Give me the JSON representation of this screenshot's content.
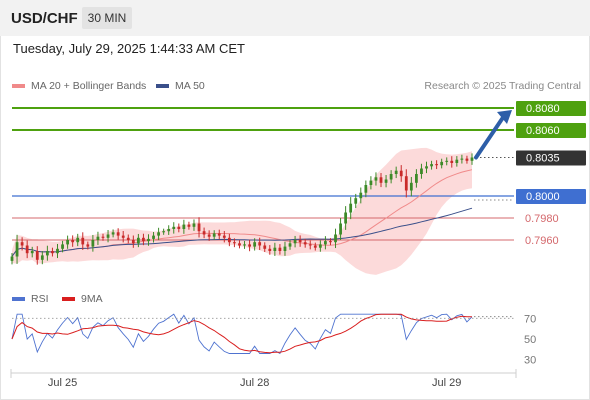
{
  "header": {
    "pair": "USD/CHF",
    "timeframe": "30 MIN"
  },
  "datetime": "Tuesday, July 29, 2025 1:44:33 AM CET",
  "legend": {
    "ma20": "MA 20 + Bollinger Bands",
    "ma50": "MA 50",
    "credit": "Research © 2025 Trading Central"
  },
  "rsi_legend": {
    "rsi": "RSI",
    "ma": "9MA"
  },
  "colors": {
    "resistance": "#4ea10f",
    "support": "#d4686c",
    "pivot": "#3f6fd1",
    "ma20": "#f08a8a",
    "ma50": "#3a4f8a",
    "band": "#fcd4d4",
    "candle_up": "#3d8a28",
    "candle_down": "#c92a2a",
    "arrow": "#2d5ea8",
    "rsi": "#4f73d0",
    "rsi_ma": "#d91e1e"
  },
  "chart_data": [
    {
      "type": "candlestick",
      "ylim": [
        0.793,
        0.809
      ],
      "price_levels": [
        {
          "label": "0.8080",
          "value": 0.808,
          "kind": "resistance"
        },
        {
          "label": "0.8060",
          "value": 0.806,
          "kind": "resistance"
        },
        {
          "label": "0.8035",
          "value": 0.8035,
          "kind": "last"
        },
        {
          "label": "0.8000",
          "value": 0.8,
          "kind": "pivot"
        },
        {
          "label": "0.7980",
          "value": 0.798,
          "kind": "support"
        },
        {
          "label": "0.7960",
          "value": 0.796,
          "kind": "support"
        }
      ],
      "x_ticks": [
        {
          "label": "Jul 25",
          "index": 10
        },
        {
          "label": "Jul 28",
          "index": 48
        },
        {
          "label": "Jul 29",
          "index": 86
        }
      ],
      "close": [
        0.7945,
        0.7958,
        0.7955,
        0.7948,
        0.795,
        0.7942,
        0.7946,
        0.795,
        0.7948,
        0.7952,
        0.7956,
        0.796,
        0.7958,
        0.7962,
        0.7956,
        0.7954,
        0.796,
        0.7963,
        0.7962,
        0.7965,
        0.7967,
        0.7964,
        0.7962,
        0.796,
        0.7957,
        0.7962,
        0.7959,
        0.7961,
        0.7964,
        0.7967,
        0.7968,
        0.797,
        0.7972,
        0.797,
        0.7974,
        0.7972,
        0.7975,
        0.7968,
        0.7965,
        0.7963,
        0.7966,
        0.7964,
        0.7962,
        0.7958,
        0.7957,
        0.7955,
        0.7956,
        0.7954,
        0.7958,
        0.7955,
        0.7952,
        0.795,
        0.7953,
        0.795,
        0.7954,
        0.7957,
        0.796,
        0.7958,
        0.7956,
        0.7955,
        0.7953,
        0.7956,
        0.7959,
        0.7958,
        0.7965,
        0.7975,
        0.7985,
        0.7993,
        0.7998,
        0.8003,
        0.801,
        0.8014,
        0.8017,
        0.8012,
        0.8015,
        0.802,
        0.8023,
        0.8018,
        0.8005,
        0.8012,
        0.802,
        0.8025,
        0.8027,
        0.8029,
        0.8028,
        0.8031,
        0.8032,
        0.803,
        0.8033,
        0.8034,
        0.8032,
        0.8035
      ]
    },
    {
      "type": "line",
      "series": [
        {
          "name": "RSI"
        },
        {
          "name": "9MA"
        }
      ],
      "ylim": [
        20,
        80
      ],
      "y_ticks": [
        {
          "label": "70",
          "value": 70
        },
        {
          "label": "50",
          "value": 50
        },
        {
          "label": "30",
          "value": 30
        }
      ]
    }
  ]
}
